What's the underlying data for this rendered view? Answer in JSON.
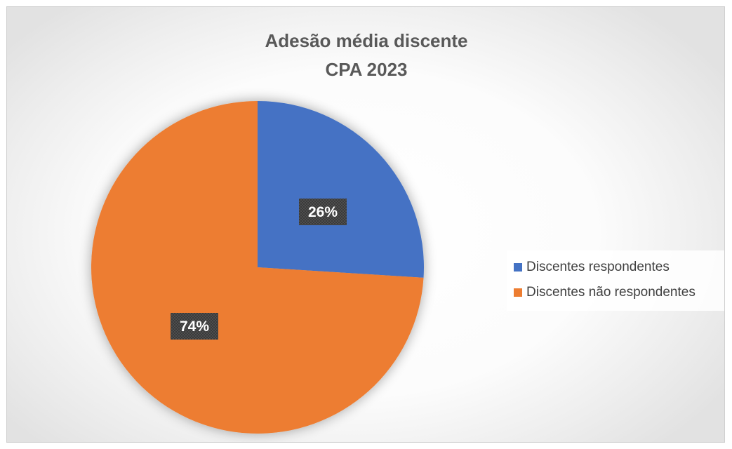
{
  "chart_data": {
    "type": "pie",
    "title": "Adesão média discente",
    "subtitle": "CPA 2023",
    "slices": [
      {
        "name": "Discentes respondentes",
        "value": 26,
        "label": "26%",
        "color": "#4472C4"
      },
      {
        "name": "Discentes não respondentes",
        "value": 74,
        "label": "74%",
        "color": "#ED7D31"
      }
    ],
    "legend_position": "right"
  }
}
